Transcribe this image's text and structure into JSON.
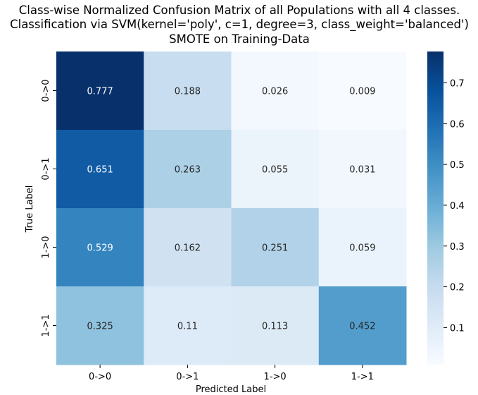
{
  "chart_data": {
    "type": "heatmap",
    "title_lines": [
      "Class-wise Normalized Confusion Matrix of all Populations with all 4 classes.",
      "Classification via SVM(kernel='poly', c=1, degree=3, class_weight='balanced')",
      "SMOTE on Training-Data"
    ],
    "xlabel": "Predicted Label",
    "ylabel": "True Label",
    "x_categories": [
      "0->0",
      "0->1",
      "1->0",
      "1->1"
    ],
    "y_categories": [
      "0->0",
      "0->1",
      "1->0",
      "1->1"
    ],
    "values": [
      [
        0.777,
        0.188,
        0.026,
        0.009
      ],
      [
        0.651,
        0.263,
        0.055,
        0.031
      ],
      [
        0.529,
        0.162,
        0.251,
        0.059
      ],
      [
        0.325,
        0.11,
        0.113,
        0.452
      ]
    ],
    "colormap": "Blues",
    "colorbar": {
      "ticks": [
        0.1,
        0.2,
        0.3,
        0.4,
        0.5,
        0.6,
        0.7
      ],
      "tick_labels": [
        "0.1",
        "0.2",
        "0.3",
        "0.4",
        "0.5",
        "0.6",
        "0.7"
      ],
      "range": [
        0.009,
        0.777
      ]
    }
  }
}
